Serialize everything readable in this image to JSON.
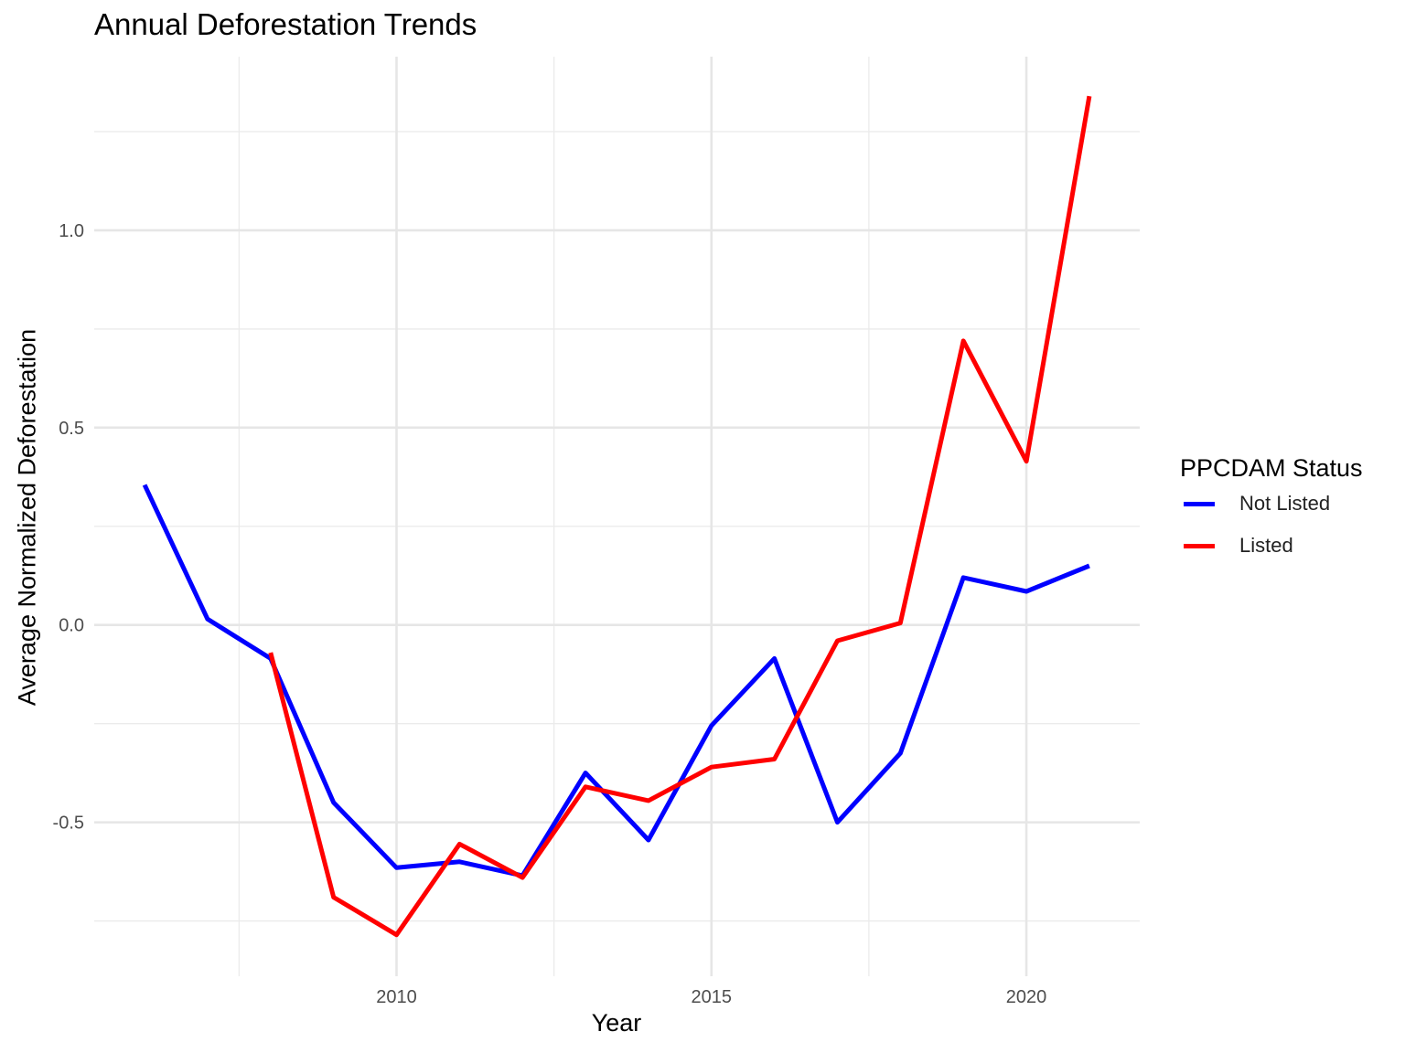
{
  "chart_data": {
    "type": "line",
    "title": "Annual Deforestation Trends",
    "xlabel": "Year",
    "ylabel": "Average Normalized Deforestation",
    "xlim": [
      2005.2,
      2021.8
    ],
    "ylim": [
      -0.89,
      1.44
    ],
    "x_ticks": [
      2010,
      2015,
      2020
    ],
    "x_minor_ticks": [
      2007.5,
      2012.5,
      2017.5
    ],
    "y_ticks": [
      -0.5,
      0.0,
      0.5,
      1.0
    ],
    "y_tick_labels": [
      "-0.5",
      "0.0",
      "0.5",
      "1.0"
    ],
    "y_minor_ticks": [
      -0.75,
      -0.25,
      0.25,
      0.75,
      1.25
    ],
    "x_tick_labels": [
      "2010",
      "2015",
      "2020"
    ],
    "grid": true,
    "legend": {
      "title": "PPCDAM Status",
      "position": "right",
      "items": [
        {
          "label": "Not Listed",
          "color": "#0000FF"
        },
        {
          "label": "Listed",
          "color": "#FF0000"
        }
      ]
    },
    "series": [
      {
        "name": "Not Listed",
        "color": "#0000FF",
        "x": [
          2006,
          2007,
          2008,
          2009,
          2010,
          2011,
          2012,
          2013,
          2014,
          2015,
          2016,
          2017,
          2018,
          2019,
          2020,
          2021
        ],
        "y": [
          0.355,
          0.015,
          -0.085,
          -0.45,
          -0.615,
          -0.6,
          -0.635,
          -0.375,
          -0.545,
          -0.255,
          -0.085,
          -0.5,
          -0.325,
          0.12,
          0.085,
          0.15
        ]
      },
      {
        "name": "Listed",
        "color": "#FF0000",
        "x": [
          2008,
          2009,
          2010,
          2011,
          2012,
          2013,
          2014,
          2015,
          2016,
          2017,
          2018,
          2019,
          2020,
          2021
        ],
        "y": [
          -0.07,
          -0.69,
          -0.785,
          -0.555,
          -0.64,
          -0.41,
          -0.445,
          -0.36,
          -0.34,
          -0.04,
          0.005,
          0.72,
          0.415,
          1.34
        ]
      }
    ]
  }
}
